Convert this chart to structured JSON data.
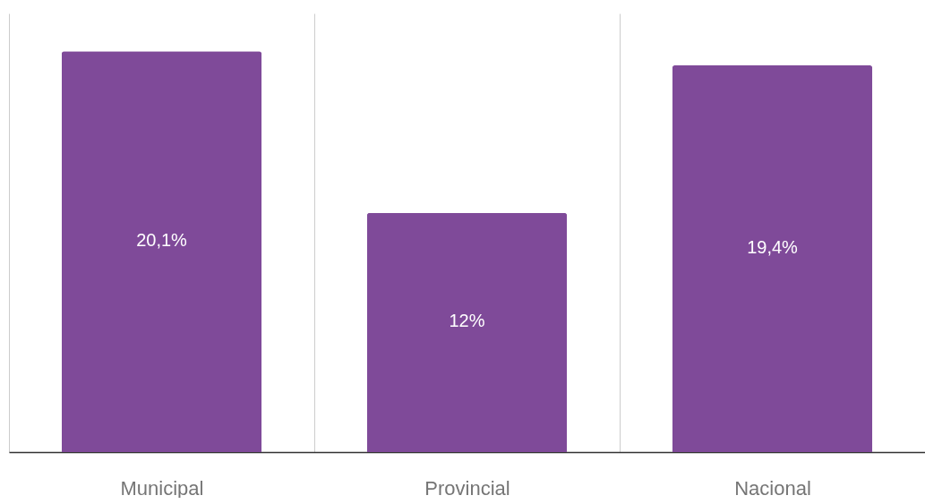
{
  "chart_data": {
    "type": "bar",
    "categories": [
      "Municipal",
      "Provincial",
      "Nacional"
    ],
    "values": [
      20.1,
      12,
      19.4
    ],
    "value_labels": [
      "20,1%",
      "12%",
      "19,4%"
    ],
    "color": "#7f4a99",
    "grid": "x"
  }
}
